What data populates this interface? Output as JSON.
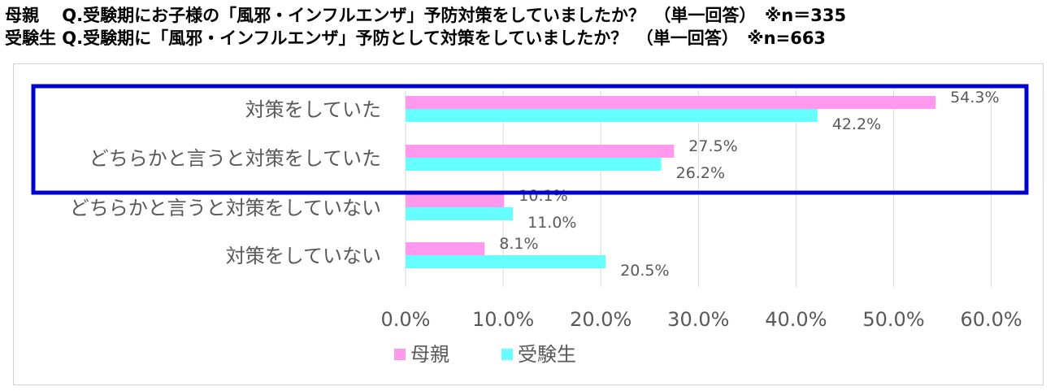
{
  "header": {
    "line1": "母親　 Q.受験期にお子様の「風邪・インフルエンザ」予防対策をしていましたか？　（単一回答）　※n＝335",
    "line2": "受験生 Q.受験期に「風邪・インフルエンザ」予防として対策をしていましたか？　（単一回答）　※n=663"
  },
  "colors": {
    "mother": "#ff99ee",
    "student": "#66ffff",
    "highlight_border": "#0000cc",
    "grid": "#d9d9d9",
    "text": "#595959"
  },
  "chart_data": {
    "type": "bar",
    "orientation": "horizontal",
    "categories": [
      "対策をしていた",
      "どちらかと言うと対策をしていた",
      "どちらかと言うと対策をしていない",
      "対策をしていない"
    ],
    "series": [
      {
        "name": "母親",
        "values": [
          54.3,
          27.5,
          10.1,
          8.1
        ],
        "labels": [
          "54.3%",
          "27.5%",
          "10.1%",
          "8.1%"
        ]
      },
      {
        "name": "受験生",
        "values": [
          42.2,
          26.2,
          11.0,
          20.5
        ],
        "labels": [
          "42.2%",
          "26.2%",
          "11.0%",
          "20.5%"
        ]
      }
    ],
    "xlim": [
      0,
      60
    ],
    "xticks": [
      "0.0%",
      "10.0%",
      "20.0%",
      "30.0%",
      "40.0%",
      "50.0%",
      "60.0%"
    ],
    "grid": true,
    "legend": "bottom-left",
    "highlight": "first two categories outlined in blue"
  }
}
